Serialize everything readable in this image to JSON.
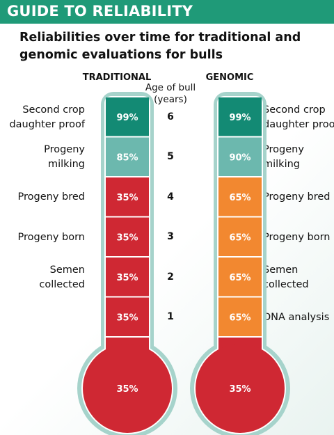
{
  "header": {
    "title": "GUIDE TO RELIABILITY"
  },
  "subtitle": "Reliabilities over time for traditional and genomic evaluations for bulls",
  "age_header": "Age of bull (years)",
  "chart_data": {
    "type": "table",
    "title": "Reliabilities over time for traditional and genomic evaluations for bulls",
    "columns": [
      "TRADITIONAL",
      "Age of bull (years)",
      "GENOMIC"
    ],
    "categories": [
      "6",
      "5",
      "4",
      "3",
      "2",
      "1",
      "bulb"
    ],
    "series": [
      {
        "name": "TRADITIONAL",
        "values": [
          "99%",
          "85%",
          "35%",
          "35%",
          "35%",
          "35%",
          "35%"
        ],
        "labels": [
          "Second crop daughter proof",
          "Progeny milking",
          "Progeny bred",
          "Progeny born",
          "Semen collected",
          "",
          ""
        ],
        "colors": [
          "#138a74",
          "#6cb8ae",
          "#cf2833",
          "#cf2833",
          "#cf2833",
          "#cf2833",
          "#cf2833"
        ]
      },
      {
        "name": "GENOMIC",
        "values": [
          "99%",
          "90%",
          "65%",
          "65%",
          "65%",
          "65%",
          "35%"
        ],
        "labels": [
          "Second crop daughter proof",
          "Progeny milking",
          "Progeny bred",
          "Progeny born",
          "Semen collected",
          "DNA analysis",
          ""
        ],
        "colors": [
          "#138a74",
          "#6cb8ae",
          "#f28830",
          "#f28830",
          "#f28830",
          "#f28830",
          "#cf2833"
        ]
      }
    ],
    "ages": [
      "6",
      "5",
      "4",
      "3",
      "2",
      "1"
    ]
  }
}
